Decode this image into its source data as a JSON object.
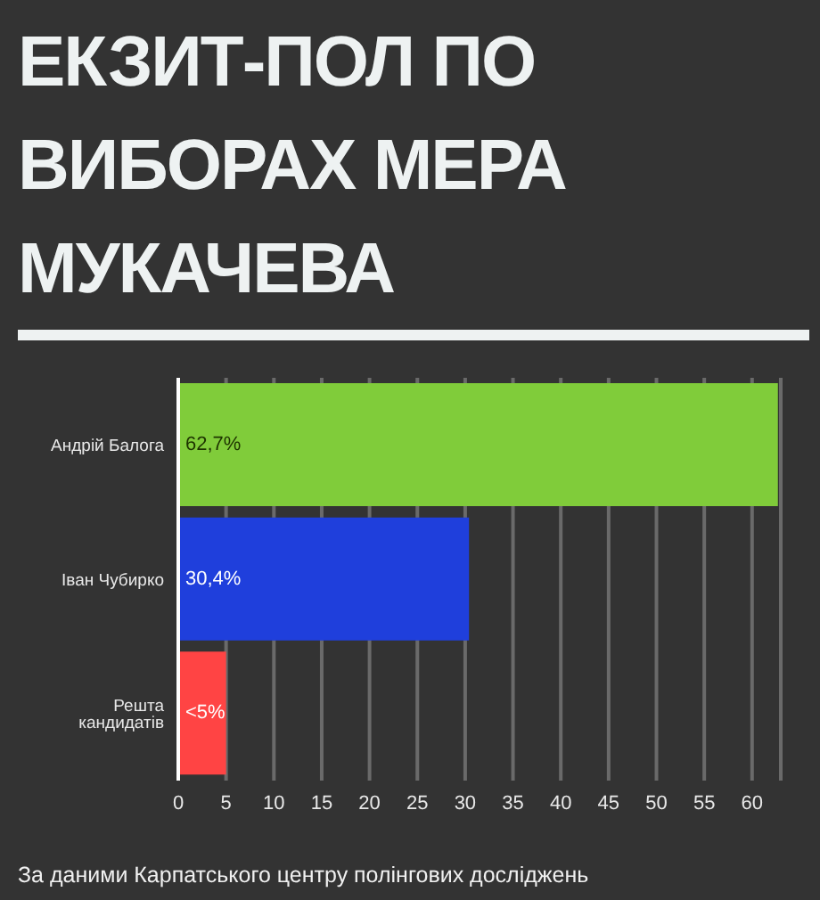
{
  "chart_data": {
    "type": "bar",
    "orientation": "horizontal",
    "title": "ЕКЗИТ-ПОЛ ПО ВИБОРАХ МЕРА МУКАЧЕВА",
    "categories": [
      "Андрій Балога",
      "Іван Чубирко",
      "Решта кандидатів"
    ],
    "values": [
      62.7,
      30.4,
      5
    ],
    "colors": [
      "#80cc3a",
      "#1f3fdc",
      "#ff4444"
    ],
    "value_labels": [
      "62,7%",
      "30,4%",
      "<5%"
    ],
    "xlim": [
      0,
      63
    ],
    "xticks": [
      0,
      5,
      10,
      15,
      20,
      25,
      30,
      35,
      40,
      45,
      50,
      55,
      60
    ],
    "grid": "x",
    "annotations": [
      "За даними Карпатського центру полінгових досліджень"
    ]
  }
}
